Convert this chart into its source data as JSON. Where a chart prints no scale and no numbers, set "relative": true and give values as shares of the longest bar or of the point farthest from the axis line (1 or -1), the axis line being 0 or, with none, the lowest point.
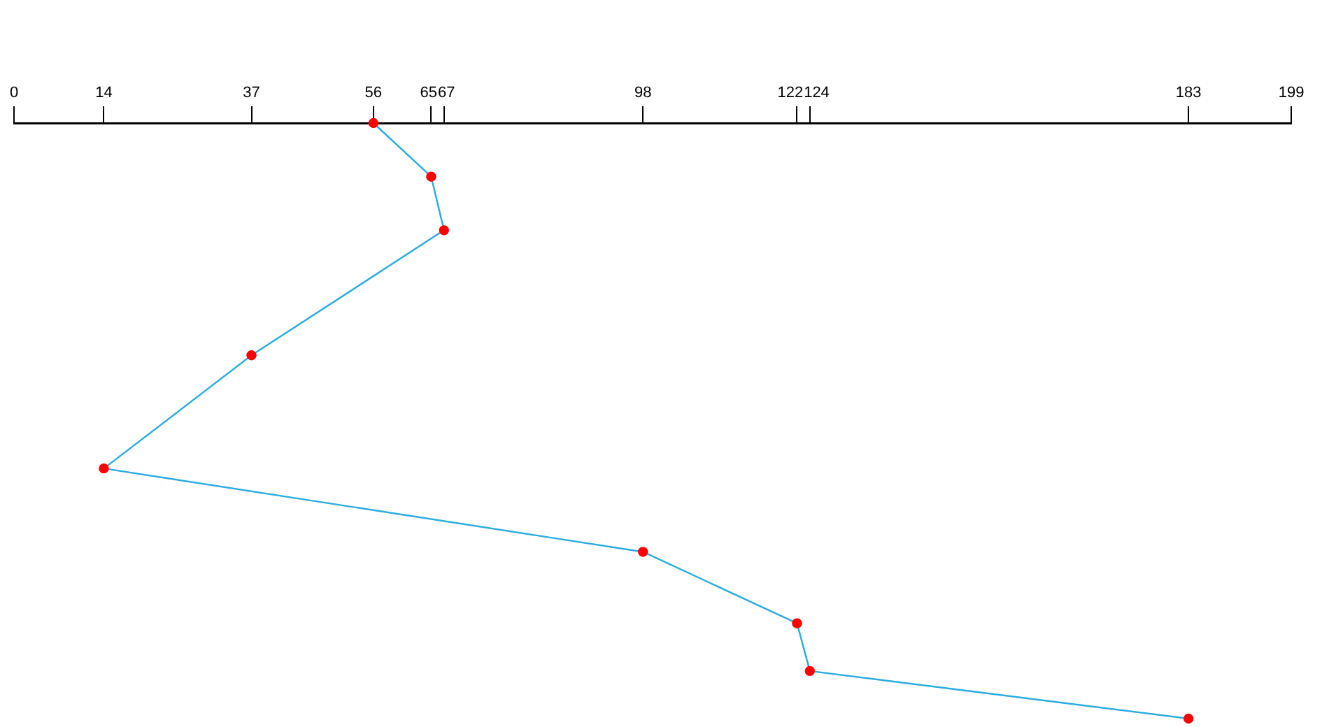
{
  "chart_data": {
    "type": "line",
    "relative": true,
    "xlim": [
      0,
      199
    ],
    "xticks": [
      0,
      14,
      37,
      56,
      65,
      67,
      98,
      122,
      124,
      183,
      199
    ],
    "grid": false,
    "legend": false,
    "marker": "circle",
    "line_style": "solid",
    "tick_labels": "x",
    "series": [
      {
        "color": "#29abe2",
        "colors": [
          "#ff0000",
          "#ff0000",
          "#ff0000",
          "#ff0000",
          "#ff0000",
          "#ff0000",
          "#ff0000",
          "#ff0000",
          "#ff0000"
        ],
        "x": [
          56,
          65,
          67,
          37,
          14,
          98,
          122,
          124,
          183
        ],
        "values": [
          1,
          0.91,
          0.82,
          0.61,
          0.42,
          0.28,
          0.16,
          0.08,
          0
        ]
      }
    ]
  }
}
